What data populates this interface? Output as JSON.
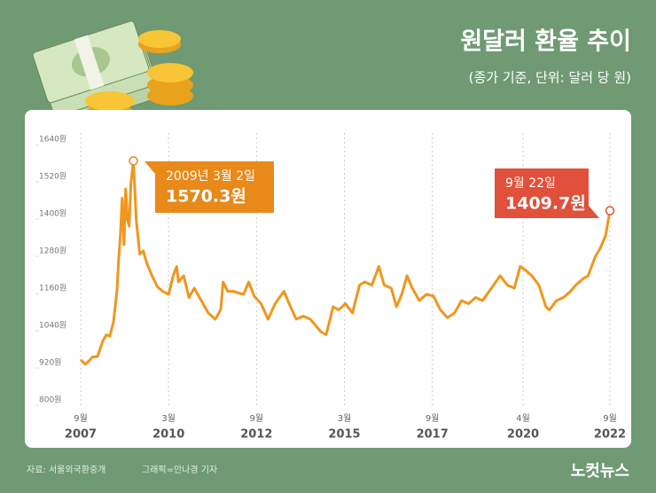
{
  "chart_data": {
    "type": "line",
    "title": "원달러 환율 추이",
    "subtitle": "(종가 기준, 단위: 달러 당 원)",
    "source": "자료: 서울외국환중개",
    "credit": "그래픽=안나경 기자",
    "logo": "노컷뉴스",
    "grid": "x",
    "ylim": [
      800,
      1640
    ],
    "yticks": [
      {
        "value": 800,
        "label": "800원"
      },
      {
        "value": 920,
        "label": "920원"
      },
      {
        "value": 1040,
        "label": "1040원"
      },
      {
        "value": 1160,
        "label": "1160원"
      },
      {
        "value": 1280,
        "label": "1280원"
      },
      {
        "value": 1400,
        "label": "1400원"
      },
      {
        "value": 1520,
        "label": "1520원"
      },
      {
        "value": 1640,
        "label": "1640원"
      }
    ],
    "xlim": [
      2007.67,
      2022.72
    ],
    "xticks": [
      {
        "value": 2007.67,
        "label": "9월",
        "year": "2007"
      },
      {
        "value": 2010.17,
        "label": "3월",
        "year": "2010"
      },
      {
        "value": 2012.67,
        "label": "9월",
        "year": "2012"
      },
      {
        "value": 2015.17,
        "label": "3월",
        "year": "2015"
      },
      {
        "value": 2017.67,
        "label": "9월",
        "year": "2017"
      },
      {
        "value": 2020.25,
        "label": "4월",
        "year": "2020"
      },
      {
        "value": 2022.72,
        "label": "9월",
        "year": "2022"
      }
    ],
    "series": [
      {
        "color": "#f0961e",
        "x": [
          2007.67,
          2007.8,
          2007.9,
          2008.0,
          2008.15,
          2008.3,
          2008.4,
          2008.5,
          2008.6,
          2008.7,
          2008.75,
          2008.8,
          2008.85,
          2008.9,
          2008.95,
          2009.0,
          2009.05,
          2009.1,
          2009.17,
          2009.25,
          2009.35,
          2009.45,
          2009.55,
          2009.7,
          2009.85,
          2010.0,
          2010.17,
          2010.3,
          2010.4,
          2010.45,
          2010.6,
          2010.75,
          2010.9,
          2011.1,
          2011.3,
          2011.5,
          2011.65,
          2011.72,
          2011.85,
          2012.0,
          2012.3,
          2012.45,
          2012.6,
          2012.8,
          2013.0,
          2013.2,
          2013.45,
          2013.6,
          2013.8,
          2014.0,
          2014.2,
          2014.5,
          2014.65,
          2014.85,
          2015.0,
          2015.2,
          2015.4,
          2015.6,
          2015.75,
          2015.95,
          2016.15,
          2016.3,
          2016.5,
          2016.65,
          2016.8,
          2016.95,
          2017.1,
          2017.3,
          2017.5,
          2017.7,
          2017.9,
          2018.1,
          2018.3,
          2018.5,
          2018.7,
          2018.9,
          2019.1,
          2019.35,
          2019.6,
          2019.8,
          2020.0,
          2020.17,
          2020.3,
          2020.5,
          2020.7,
          2020.9,
          2021.0,
          2021.2,
          2021.4,
          2021.6,
          2021.75,
          2021.95,
          2022.1,
          2022.3,
          2022.45,
          2022.6,
          2022.72
        ],
        "values": [
          929,
          915,
          925,
          938,
          940,
          990,
          1010,
          1005,
          1050,
          1150,
          1250,
          1330,
          1450,
          1300,
          1480,
          1380,
          1360,
          1500,
          1570.3,
          1380,
          1270,
          1280,
          1240,
          1200,
          1165,
          1150,
          1140,
          1200,
          1230,
          1180,
          1200,
          1130,
          1160,
          1120,
          1080,
          1060,
          1090,
          1180,
          1150,
          1150,
          1140,
          1180,
          1135,
          1110,
          1060,
          1110,
          1150,
          1110,
          1060,
          1070,
          1060,
          1020,
          1010,
          1100,
          1090,
          1110,
          1080,
          1170,
          1180,
          1170,
          1230,
          1170,
          1160,
          1100,
          1140,
          1200,
          1160,
          1120,
          1140,
          1135,
          1090,
          1065,
          1080,
          1120,
          1110,
          1130,
          1120,
          1160,
          1200,
          1170,
          1160,
          1230,
          1220,
          1200,
          1170,
          1100,
          1090,
          1120,
          1130,
          1150,
          1170,
          1190,
          1200,
          1260,
          1290,
          1330,
          1409.7
        ]
      }
    ],
    "annotations": [
      {
        "text": "2009년 3월 2일",
        "value_label": "1570.3원"
      },
      {
        "text": "9월 22일",
        "value_label": "1409.7원"
      }
    ]
  }
}
